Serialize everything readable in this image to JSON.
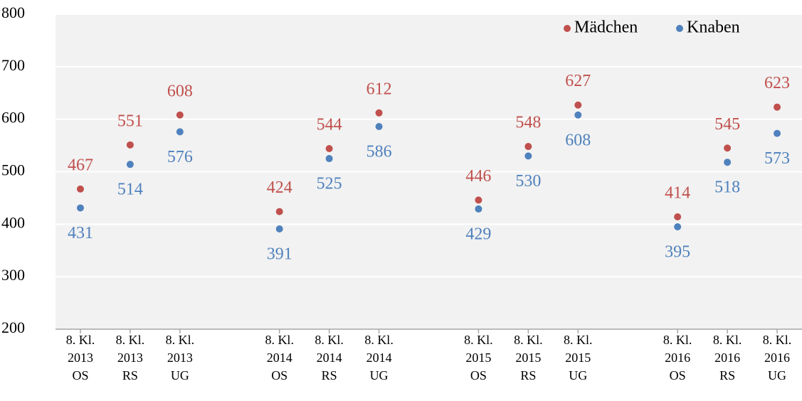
{
  "chart_data": {
    "type": "dot",
    "categories": [
      "8. Kl.\n2013\nOS",
      "8. Kl.\n2013\nRS",
      "8. Kl.\n2013\nUG",
      null,
      "8. Kl.\n2014\nOS",
      "8. Kl.\n2014\nRS",
      "8. Kl.\n2014\nUG",
      null,
      "8. Kl.\n2015\nOS",
      "8. Kl.\n2015\nRS",
      "8. Kl.\n2015\nUG",
      null,
      "8. Kl.\n2016\nOS",
      "8. Kl.\n2016\nRS",
      "8. Kl.\n2016\nUG"
    ],
    "series": [
      {
        "name": "Mädchen",
        "color": "#c0504d",
        "label_position": "above",
        "values": [
          467,
          551,
          608,
          null,
          424,
          544,
          612,
          null,
          446,
          548,
          627,
          null,
          414,
          545,
          623
        ]
      },
      {
        "name": "Knaben",
        "color": "#4f81bd",
        "label_position": "below",
        "values": [
          431,
          514,
          576,
          null,
          391,
          525,
          586,
          null,
          429,
          530,
          608,
          null,
          395,
          518,
          573
        ]
      }
    ],
    "ylim": [
      200,
      800
    ],
    "yticks": [
      200,
      300,
      400,
      500,
      600,
      700,
      800
    ],
    "grid": true,
    "legend": "top-right"
  }
}
